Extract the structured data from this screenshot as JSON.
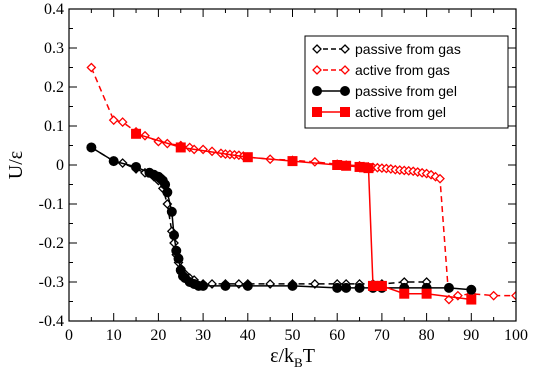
{
  "chart_data": {
    "type": "line",
    "xlabel": "ε/k",
    "xlabel_sub": "B",
    "xlabel_suffix": "T",
    "ylabel": "U/ε",
    "xlim": [
      0,
      100
    ],
    "ylim": [
      -0.4,
      0.4
    ],
    "xticks": [
      0,
      10,
      20,
      30,
      40,
      50,
      60,
      70,
      80,
      90,
      100
    ],
    "xtick_labels": [
      "0",
      "10",
      "20",
      "30",
      "40",
      "50",
      "60",
      "70",
      "80",
      "90",
      "100"
    ],
    "yticks": [
      -0.4,
      -0.3,
      -0.2,
      -0.1,
      0,
      0.1,
      0.2,
      0.3,
      0.4
    ],
    "ytick_labels": [
      "-0.4",
      "-0.3",
      "-0.2",
      "-0.1",
      "0",
      "0.1",
      "0.2",
      "0.3",
      "0.4"
    ],
    "legend_position": "top-right",
    "series": [
      {
        "name": "passive from gas",
        "color": "#000000",
        "line": "dashed",
        "marker": "open-diamond",
        "x": [
          5,
          10,
          12,
          15,
          17,
          19,
          20,
          21,
          22,
          23,
          23.5,
          24,
          24.5,
          25,
          25.5,
          26,
          27,
          28,
          30,
          32,
          35,
          38,
          40,
          45,
          50,
          55,
          60,
          62,
          65,
          68,
          70,
          75,
          80
        ],
        "y": [
          0.045,
          0.01,
          0.005,
          -0.01,
          -0.02,
          -0.03,
          -0.04,
          -0.06,
          -0.1,
          -0.17,
          -0.2,
          -0.23,
          -0.25,
          -0.265,
          -0.275,
          -0.28,
          -0.29,
          -0.295,
          -0.305,
          -0.305,
          -0.305,
          -0.305,
          -0.305,
          -0.305,
          -0.305,
          -0.305,
          -0.305,
          -0.305,
          -0.305,
          -0.305,
          -0.305,
          -0.3,
          -0.3
        ]
      },
      {
        "name": "active from gas",
        "color": "#ff0000",
        "line": "dashed",
        "marker": "open-diamond",
        "x": [
          5,
          10,
          12,
          15,
          17,
          20,
          22,
          25,
          27,
          28,
          30,
          32,
          34,
          35,
          36,
          37,
          38,
          39,
          40,
          45,
          50,
          55,
          60,
          62,
          65,
          66,
          67,
          68,
          69,
          70,
          71,
          72,
          73,
          74,
          75,
          76,
          77,
          78,
          79,
          80,
          81,
          82,
          83,
          85,
          87,
          90,
          95,
          100
        ],
        "y": [
          0.25,
          0.115,
          0.11,
          0.085,
          0.075,
          0.06,
          0.055,
          0.05,
          0.045,
          0.04,
          0.04,
          0.035,
          0.03,
          0.028,
          0.027,
          0.026,
          0.025,
          0.023,
          0.02,
          0.015,
          0.012,
          0.008,
          0.002,
          0.0,
          -0.002,
          -0.004,
          -0.005,
          -0.006,
          -0.007,
          -0.008,
          -0.009,
          -0.01,
          -0.012,
          -0.013,
          -0.014,
          -0.015,
          -0.016,
          -0.018,
          -0.02,
          -0.022,
          -0.025,
          -0.03,
          -0.035,
          -0.345,
          -0.335,
          -0.33,
          -0.335,
          -0.335
        ]
      },
      {
        "name": "passive from gel",
        "color": "#000000",
        "line": "solid",
        "marker": "filled-circle",
        "x": [
          5,
          10,
          15,
          18,
          19,
          20,
          20.5,
          21,
          21.5,
          22,
          23,
          23.5,
          24,
          24.5,
          25,
          25.5,
          26,
          27,
          28,
          29,
          30,
          35,
          40,
          50,
          60,
          62,
          65,
          68,
          70,
          75,
          80,
          85,
          90
        ],
        "y": [
          0.045,
          0.01,
          -0.005,
          -0.02,
          -0.025,
          -0.03,
          -0.035,
          -0.04,
          -0.05,
          -0.07,
          -0.12,
          -0.18,
          -0.22,
          -0.24,
          -0.27,
          -0.285,
          -0.29,
          -0.3,
          -0.305,
          -0.31,
          -0.31,
          -0.31,
          -0.31,
          -0.31,
          -0.315,
          -0.315,
          -0.315,
          -0.315,
          -0.315,
          -0.315,
          -0.315,
          -0.315,
          -0.32
        ]
      },
      {
        "name": "active from gel",
        "color": "#ff0000",
        "line": "solid",
        "marker": "filled-square",
        "x": [
          15,
          25,
          40,
          50,
          60,
          62,
          65,
          66,
          67,
          68,
          69,
          70,
          75,
          80,
          90
        ],
        "y": [
          0.08,
          0.045,
          0.02,
          0.01,
          0.0,
          -0.002,
          -0.005,
          -0.006,
          -0.008,
          -0.31,
          -0.31,
          -0.31,
          -0.33,
          -0.33,
          -0.345
        ]
      }
    ]
  }
}
